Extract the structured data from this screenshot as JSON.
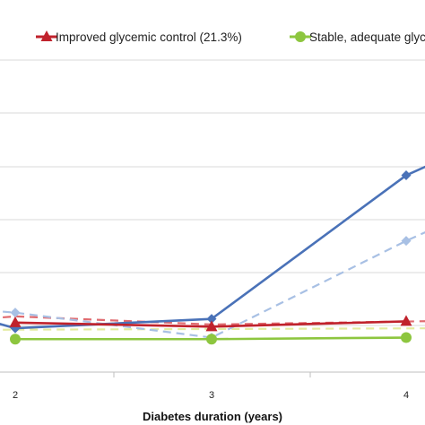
{
  "chart_data": {
    "type": "line",
    "xlabel": "Diabetes duration (years)",
    "x_ticks": [
      "2",
      "3",
      "4"
    ],
    "legend": [
      {
        "label": "Improved glycemic control (21.3%)",
        "color": "#c0222c",
        "marker": "triangle"
      },
      {
        "label": "Stable, adequate glyc",
        "color": "#8dc63f",
        "marker": "circle"
      }
    ],
    "series": [
      {
        "name": "Improved glycemic control (21.3%)",
        "color": "#c0222c",
        "marker": "triangle",
        "dash": false,
        "x": [
          2,
          3,
          4
        ],
        "y": [
          0.58,
          0.45,
          0.62
        ]
      },
      {
        "name": "",
        "color": "#e06b70",
        "marker": "none",
        "dash": true,
        "x": [
          1.8,
          2,
          3,
          4.25
        ],
        "y": [
          0.68,
          0.78,
          0.52,
          0.64
        ]
      },
      {
        "name": "Stable, adequate glyc",
        "color": "#8dc63f",
        "marker": "circle",
        "dash": false,
        "x": [
          2,
          3,
          4
        ],
        "y": [
          0.05,
          0.05,
          0.1
        ]
      },
      {
        "name": "",
        "color": "#e3eba0",
        "marker": "none",
        "dash": true,
        "x": [
          1.8,
          4.25
        ],
        "y": [
          0.35,
          0.4
        ]
      },
      {
        "name": "",
        "color": "#4a72b8",
        "marker": "diamond",
        "dash": false,
        "x": [
          1.8,
          2,
          3,
          4,
          4.25
        ],
        "y": [
          0.75,
          0.4,
          0.7,
          5.3,
          6.0
        ]
      },
      {
        "name": "",
        "color": "#a8c0e4",
        "marker": "diamond",
        "dash": true,
        "x": [
          1.8,
          2,
          3,
          4,
          4.25
        ],
        "y": [
          1.0,
          0.9,
          0.1,
          3.2,
          3.9
        ]
      }
    ],
    "grid": true,
    "legend_position": "top"
  }
}
